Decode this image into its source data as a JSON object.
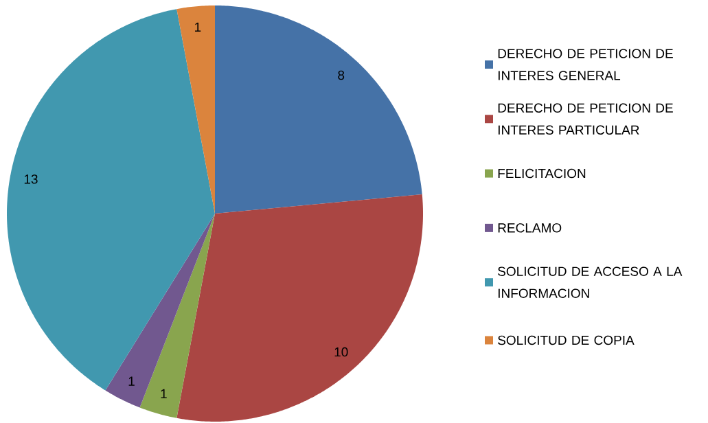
{
  "chart_data": {
    "type": "pie",
    "categories": [
      "DERECHO DE PETICION DE INTERES GENERAL",
      "DERECHO DE PETICION DE INTERES PARTICULAR",
      "FELICITACION",
      "RECLAMO",
      "SOLICITUD DE ACCESO A LA INFORMACION",
      "SOLICITUD DE COPIA"
    ],
    "values": [
      8,
      10,
      1,
      1,
      13,
      1
    ],
    "colors": [
      "#4572a7",
      "#aa4643",
      "#89a54e",
      "#71588f",
      "#4198af",
      "#db843d"
    ],
    "data_labels": true,
    "legend": "right"
  }
}
